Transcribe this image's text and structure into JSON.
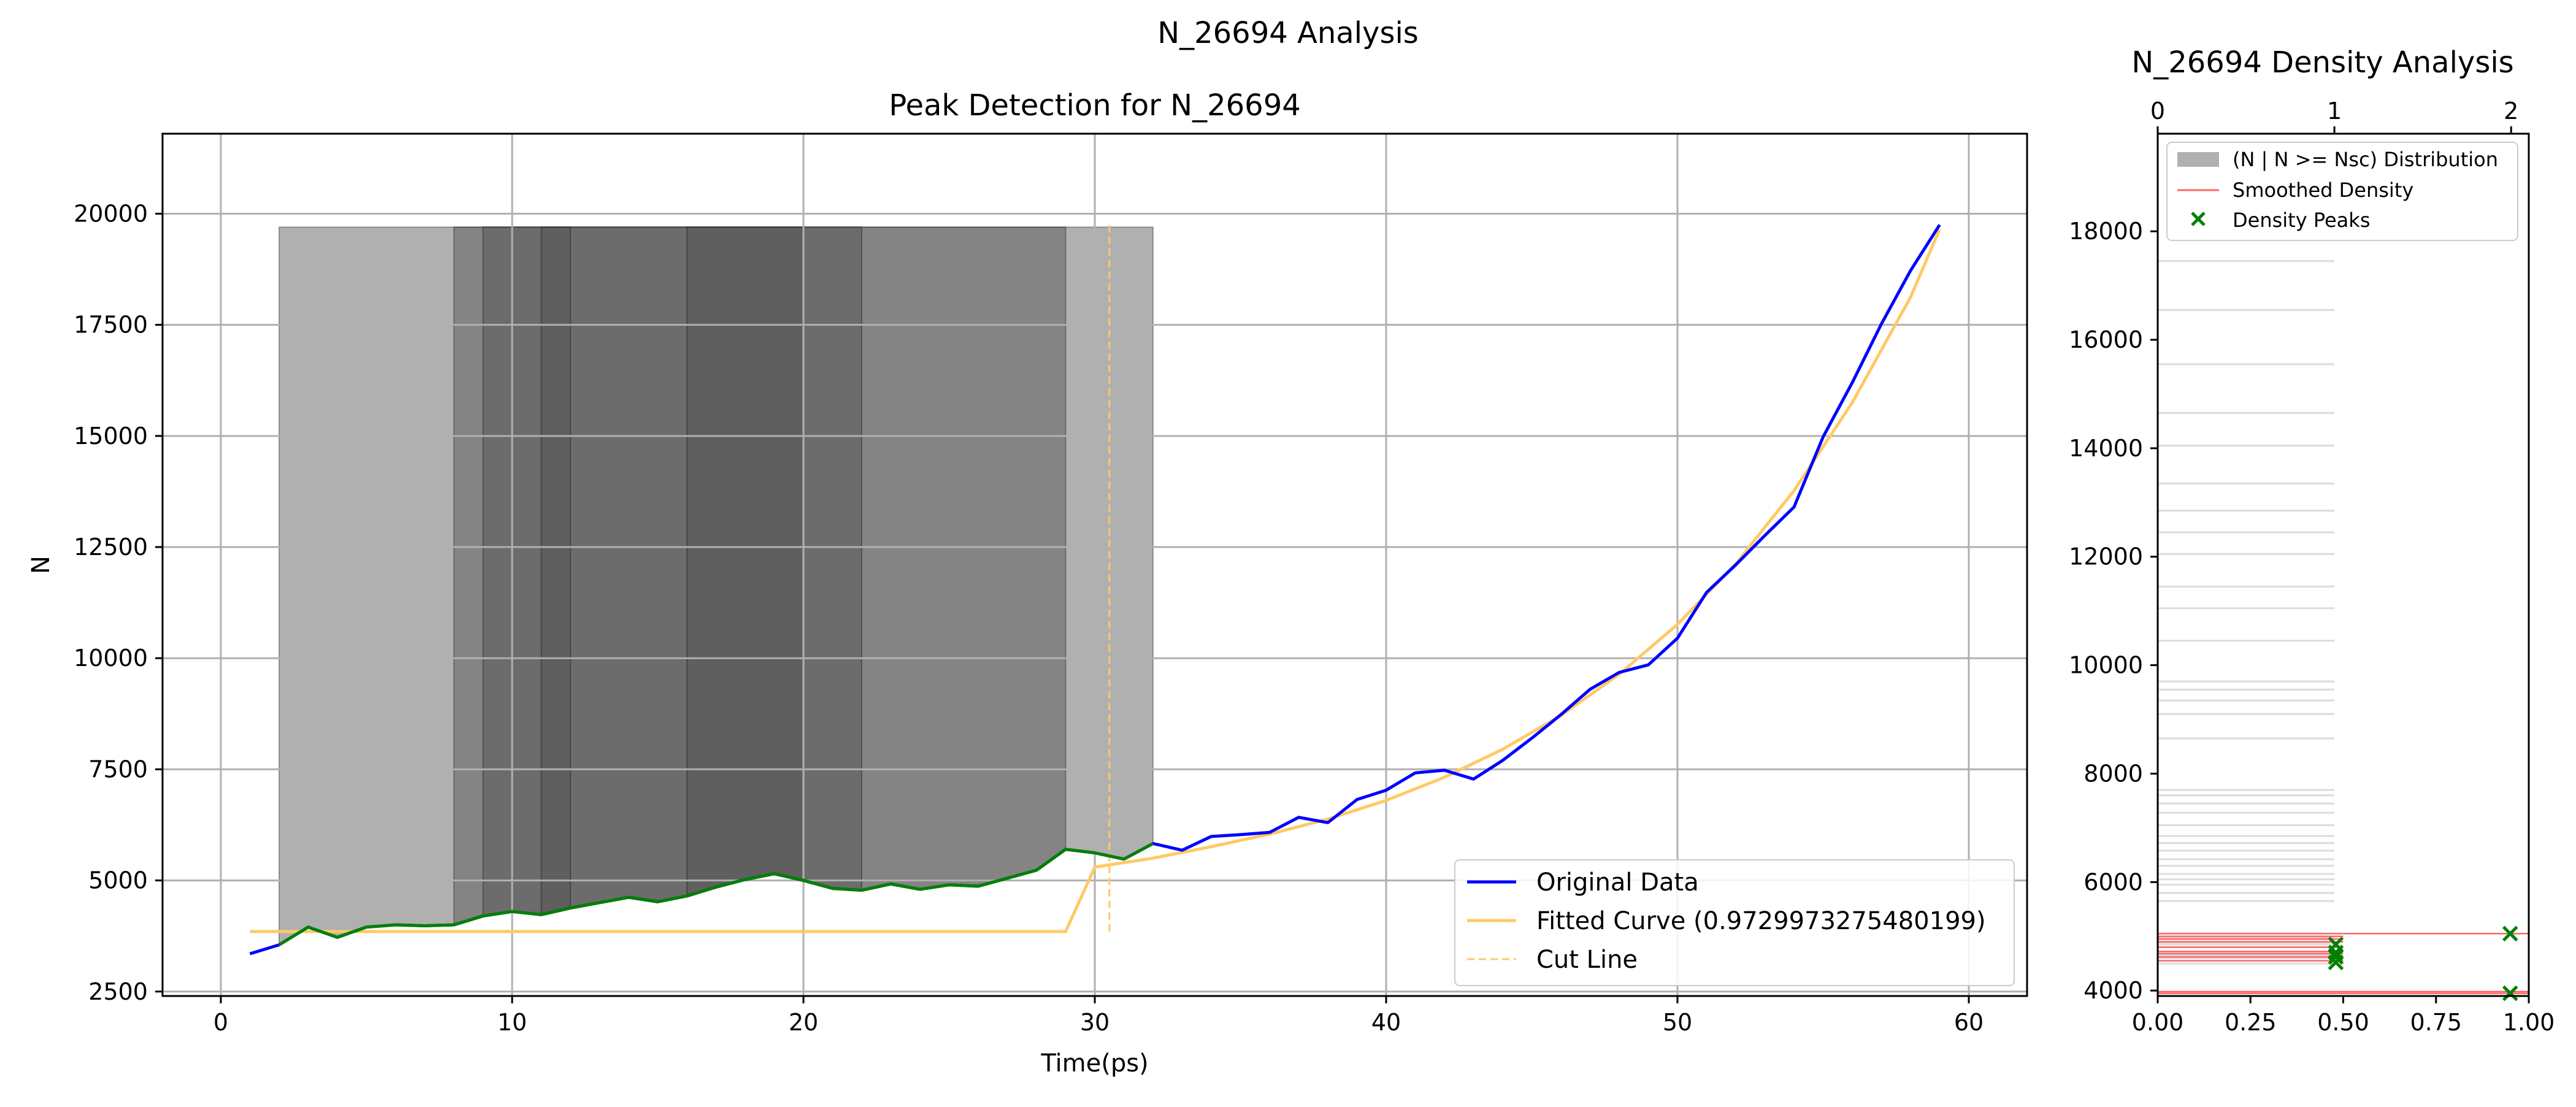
{
  "figure": {
    "suptitle": "N_26694 Analysis"
  },
  "colors": {
    "original": "#0000ff",
    "fitted": "#ffc966",
    "green": "#008000",
    "density_line": "#ff6666",
    "grid": "#b0b0b0",
    "hist_bar": "#dcdcdc"
  },
  "chart_data": [
    {
      "type": "line",
      "title": "Peak Detection for N_26694",
      "xlabel": "Time(ps)",
      "ylabel": "N",
      "xlim": [
        -2,
        62
      ],
      "ylim": [
        2400,
        21800
      ],
      "xticks": [
        0,
        10,
        20,
        30,
        40,
        50,
        60
      ],
      "yticks": [
        2500,
        5000,
        7500,
        10000,
        12500,
        15000,
        17500,
        20000
      ],
      "grid": true,
      "shaded_regions": [
        {
          "x0": 2,
          "x1": 32,
          "level": 1
        },
        {
          "x0": 8,
          "x1": 29,
          "level": 2
        },
        {
          "x0": 9,
          "x1": 22,
          "level": 3
        },
        {
          "x0": 11,
          "x1": 12,
          "level": 4
        },
        {
          "x0": 16,
          "x1": 20,
          "level": 5
        }
      ],
      "shade_top": 19700,
      "series": [
        {
          "name": "Original Data",
          "x": [
            1,
            2,
            3,
            4,
            5,
            6,
            7,
            8,
            9,
            10,
            11,
            12,
            13,
            14,
            15,
            16,
            17,
            18,
            19,
            20,
            21,
            22,
            23,
            24,
            25,
            26,
            27,
            28,
            29,
            30,
            31,
            32,
            33,
            34,
            35,
            36,
            37,
            38,
            39,
            40,
            41,
            42,
            43,
            44,
            45,
            46,
            47,
            48,
            49,
            50,
            51,
            52,
            53,
            54,
            55,
            56,
            57,
            58,
            59
          ],
          "y": [
            3350,
            3550,
            3950,
            3720,
            3950,
            4000,
            3980,
            4000,
            4200,
            4300,
            4230,
            4380,
            4500,
            4620,
            4520,
            4650,
            4850,
            5020,
            5150,
            5000,
            4820,
            4780,
            4920,
            4800,
            4900,
            4870,
            5050,
            5230,
            5700,
            5620,
            5480,
            5830,
            5680,
            5990,
            6030,
            6080,
            6420,
            6300,
            6820,
            7030,
            7420,
            7480,
            7280,
            7700,
            8200,
            8730,
            9300,
            9680,
            9850,
            10450,
            11480,
            12100,
            12760,
            13400,
            14980,
            16200,
            17520,
            18720,
            19750
          ]
        },
        {
          "name": "Fitted Curve (0.9729973275480199)",
          "x": [
            1,
            29,
            30,
            32,
            34,
            36,
            38,
            40,
            42,
            44,
            46,
            48,
            50,
            52,
            54,
            56,
            58,
            59
          ],
          "y": [
            3850,
            3850,
            5300,
            5500,
            5760,
            6040,
            6380,
            6800,
            7320,
            7950,
            8710,
            9640,
            10760,
            12120,
            13770,
            15750,
            18120,
            19650
          ]
        },
        {
          "name": "Cut Line",
          "x": [
            30.5,
            30.5
          ],
          "y": [
            3850,
            19750
          ]
        }
      ],
      "highlight_segment": {
        "color_key": "green",
        "x_from": 2,
        "x_to": 32
      },
      "legend": {
        "position": "lower-right",
        "entries": [
          "Original Data",
          "Fitted Curve (0.9729973275480199)",
          "Cut Line"
        ]
      }
    },
    {
      "type": "bar",
      "orientation": "horizontal",
      "title": "N_26694 Density Analysis",
      "xlim_bottom": [
        0,
        1
      ],
      "xticks_bottom": [
        "0.00",
        "0.25",
        "0.50",
        "0.75",
        "1.00"
      ],
      "xlim_top": [
        0,
        2.1
      ],
      "xticks_top": [
        "0",
        "1",
        "2"
      ],
      "ylim": [
        3900,
        19800
      ],
      "yticks": [
        4000,
        6000,
        8000,
        10000,
        12000,
        14000,
        16000,
        18000
      ],
      "histogram": {
        "name": "(N | N >= Nsc) Distribution",
        "counts_axis": "top",
        "values": [
          3950,
          4500,
          4600,
          4650,
          4680,
          4720,
          4800,
          4850,
          4880,
          4950,
          4980,
          5050,
          5650,
          5800,
          5950,
          6050,
          6150,
          6300,
          6420,
          6580,
          6720,
          6850,
          7050,
          7280,
          7450,
          7600,
          7700,
          8650,
          9100,
          9350,
          9550,
          9700,
          10450,
          11050,
          11450,
          12050,
          12450,
          12850,
          13350,
          14050,
          14650,
          15550,
          16550,
          17450
        ]
      },
      "smoothed_density": {
        "name": "Smoothed Density",
        "values": [
          3950,
          3980,
          4550,
          4620,
          4680,
          4720,
          4800,
          4900,
          4950,
          5000,
          5050
        ]
      },
      "peaks": {
        "name": "Density Peaks",
        "points": [
          {
            "x": 0.95,
            "y": 3950
          },
          {
            "x": 0.95,
            "y": 5050
          },
          {
            "x": 0.48,
            "y": 4520
          },
          {
            "x": 0.48,
            "y": 4620
          },
          {
            "x": 0.48,
            "y": 4700
          },
          {
            "x": 0.48,
            "y": 4850
          }
        ]
      },
      "legend": {
        "position": "top-left",
        "entries": [
          "(N | N >= Nsc) Distribution",
          "Smoothed Density",
          "Density Peaks"
        ]
      }
    }
  ]
}
